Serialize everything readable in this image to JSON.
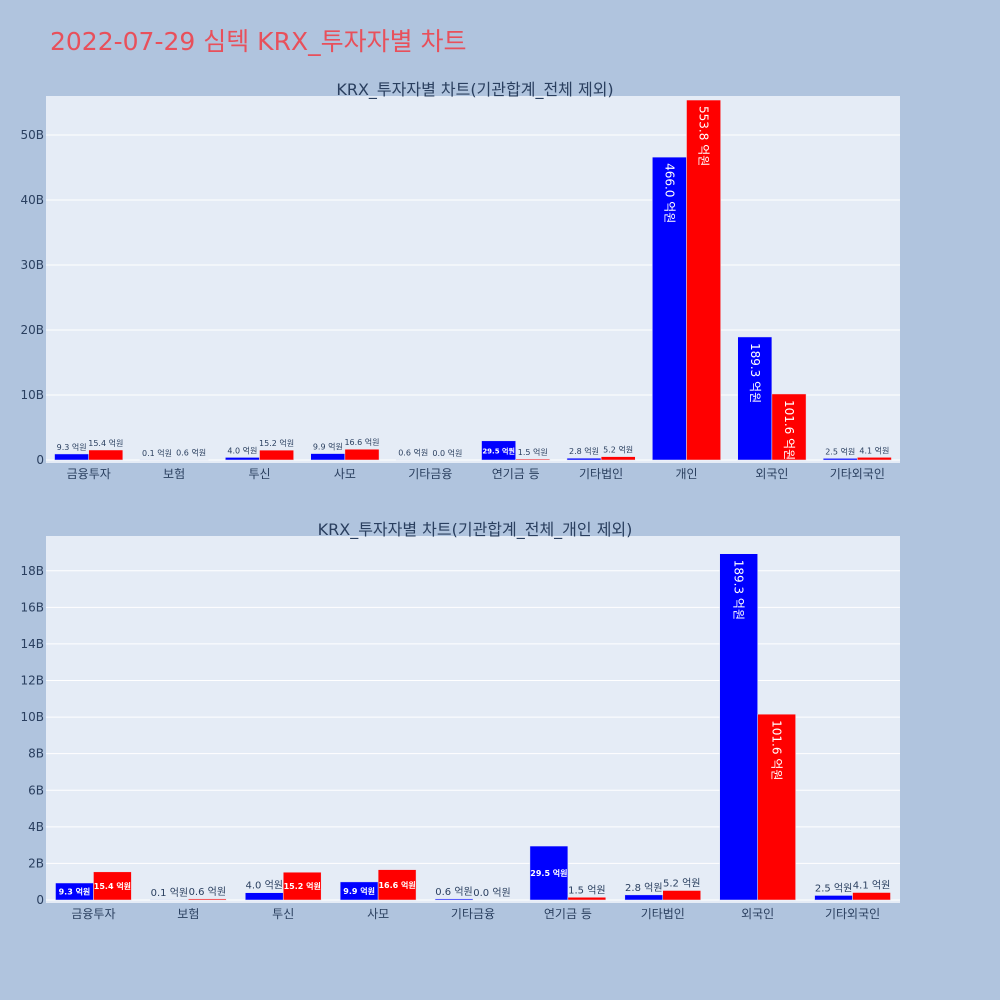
{
  "title": "2022-07-29 심텍 KRX_투자자별 차트",
  "colors": {
    "buy": "#0000ff",
    "sell": "#ff0000",
    "plot_bg": "#e5ecf6",
    "page_bg": "#b0c4de",
    "title": "#e8505b"
  },
  "chart_data": [
    {
      "type": "bar",
      "title": "KRX_투자자별 차트(기관합계_전체 제외)",
      "categories": [
        "금융투자",
        "보험",
        "투신",
        "사모",
        "기타금융",
        "연기금 등",
        "기타법인",
        "개인",
        "외국인",
        "기타외국인"
      ],
      "series": [
        {
          "values": [
            0.93,
            0.01,
            0.4,
            0.99,
            0.06,
            2.95,
            0.28,
            46.6,
            18.93,
            0.25
          ],
          "labels": [
            "9.3 억원",
            "0.1 억원",
            "4.0 억원",
            "9.9 억원",
            "0.6 억원",
            "29.5 억원",
            "2.8 억원",
            "466.0 억원",
            "189.3 억원",
            "2.5 억원"
          ]
        },
        {
          "values": [
            1.54,
            0.06,
            1.52,
            1.66,
            0.0,
            0.15,
            0.52,
            55.38,
            10.16,
            0.41
          ],
          "labels": [
            "15.4 억원",
            "0.6 억원",
            "15.2 억원",
            "16.6 억원",
            "0.0 억원",
            "1.5 억원",
            "5.2 억원",
            "553.8 억원",
            "101.6 억원",
            "4.1 억원"
          ]
        }
      ],
      "y_unit": "B",
      "ylim": [
        0,
        56
      ],
      "yticks": [
        0,
        10,
        20,
        30,
        40,
        50
      ],
      "ytick_labels": [
        "0",
        "10B",
        "20B",
        "30B",
        "40B",
        "50B"
      ],
      "grid": true
    },
    {
      "type": "bar",
      "title": "KRX_투자자별 차트(기관합계_전체_개인 제외)",
      "categories": [
        "금융투자",
        "보험",
        "투신",
        "사모",
        "기타금융",
        "연기금 등",
        "기타법인",
        "외국인",
        "기타외국인"
      ],
      "series": [
        {
          "values": [
            0.93,
            0.01,
            0.4,
            0.99,
            0.06,
            2.95,
            0.28,
            18.93,
            0.25
          ],
          "labels": [
            "9.3 억원",
            "0.1 억원",
            "4.0 억원",
            "9.9 억원",
            "0.6 억원",
            "29.5 억원",
            "2.8 억원",
            "189.3 억원",
            "2.5 억원"
          ]
        },
        {
          "values": [
            1.54,
            0.06,
            1.52,
            1.66,
            0.0,
            0.15,
            0.52,
            10.16,
            0.41
          ],
          "labels": [
            "15.4 억원",
            "0.6 억원",
            "15.2 억원",
            "16.6 억원",
            "0.0 억원",
            "1.5 억원",
            "5.2 억원",
            "101.6 억원",
            "4.1 억원"
          ]
        }
      ],
      "y_unit": "B",
      "ylim": [
        0,
        19.9
      ],
      "yticks": [
        0,
        2,
        4,
        6,
        8,
        10,
        12,
        14,
        16,
        18
      ],
      "ytick_labels": [
        "0",
        "2B",
        "4B",
        "6B",
        "8B",
        "10B",
        "12B",
        "14B",
        "16B",
        "18B"
      ],
      "grid": true
    }
  ]
}
